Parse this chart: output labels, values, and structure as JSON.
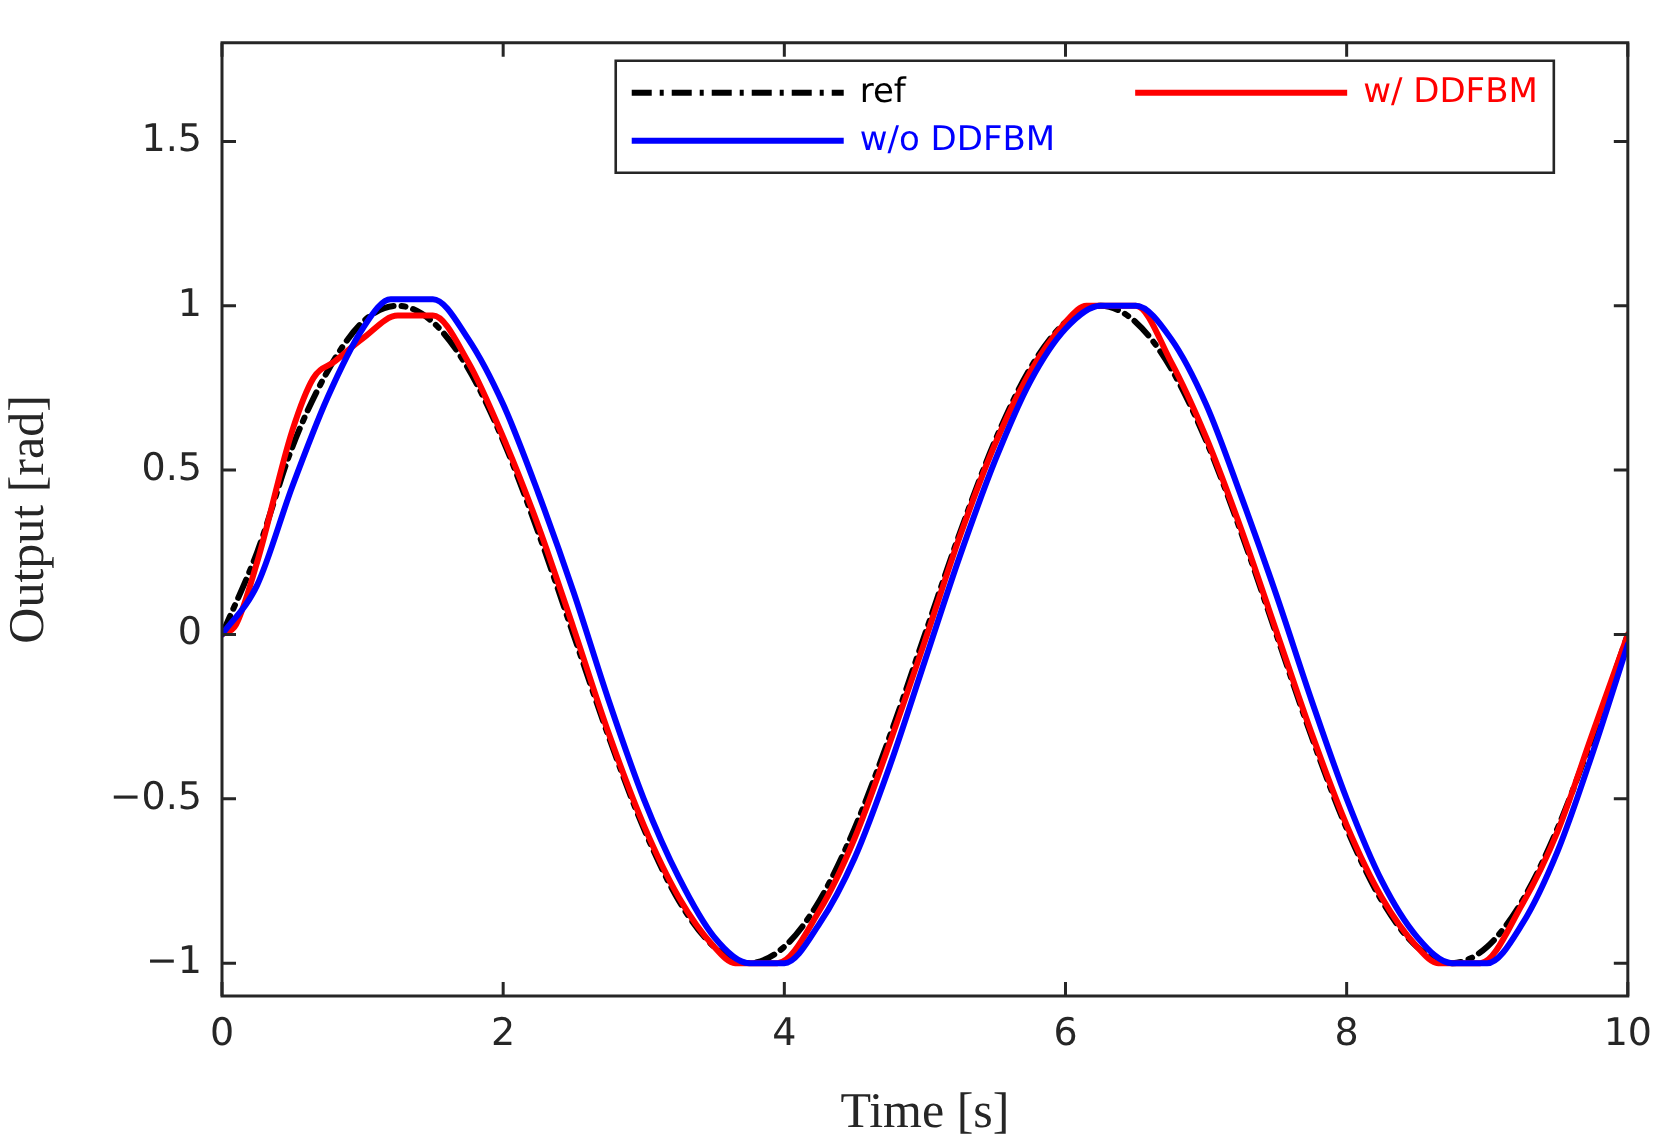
{
  "chart_data": {
    "type": "line",
    "xlabel": "Time [s]",
    "ylabel": "Output [rad]",
    "xlim": [
      0,
      10
    ],
    "xticks": [
      0,
      2,
      4,
      6,
      8,
      10
    ],
    "ylim": [
      -1.1,
      1.8
    ],
    "yticks": [
      -1,
      -0.5,
      0,
      0.5,
      1,
      1.5
    ],
    "grid": false,
    "legend": "top right",
    "marker": "none",
    "series": [
      {
        "name": "ref",
        "color": "#000000",
        "line_style": "dashed",
        "x": [
          0,
          0.25,
          0.5,
          0.75,
          1,
          1.25,
          1.5,
          1.75,
          2,
          2.25,
          2.5,
          2.75,
          3,
          3.25,
          3.5,
          3.75,
          4,
          4.25,
          4.5,
          4.75,
          5,
          5.25,
          5.5,
          5.75,
          6,
          6.25,
          6.5,
          6.75,
          7,
          7.25,
          7.5,
          7.75,
          8,
          8.25,
          8.5,
          8.75,
          9,
          9.25,
          9.5,
          9.75,
          10
        ],
        "values": [
          0,
          0.25,
          0.57,
          0.8,
          0.95,
          1,
          0.95,
          0.81,
          0.59,
          0.31,
          0,
          -0.31,
          -0.59,
          -0.81,
          -0.95,
          -1,
          -0.95,
          -0.81,
          -0.59,
          -0.31,
          0,
          0.31,
          0.59,
          0.81,
          0.95,
          1,
          0.95,
          0.81,
          0.59,
          0.31,
          0,
          -0.31,
          -0.59,
          -0.81,
          -0.95,
          -1,
          -0.95,
          -0.81,
          -0.59,
          -0.31,
          0
        ]
      },
      {
        "name": "w/ DDFBM",
        "color": "#ff0000",
        "line_style": "solid",
        "x": [
          0,
          0.1,
          0.25,
          0.5,
          0.65,
          0.8,
          1,
          1.25,
          1.5,
          1.75,
          2,
          2.25,
          2.5,
          2.75,
          3,
          3.25,
          3.5,
          3.65,
          3.95,
          4.25,
          4.5,
          4.75,
          5,
          5.25,
          5.5,
          5.75,
          6,
          6.15,
          6.5,
          6.75,
          7,
          7.25,
          7.5,
          7.75,
          8,
          8.25,
          8.5,
          8.65,
          8.95,
          9.25,
          9.5,
          9.75,
          10
        ],
        "values": [
          0,
          0.03,
          0.22,
          0.62,
          0.78,
          0.83,
          0.9,
          0.97,
          0.97,
          0.83,
          0.6,
          0.33,
          0.02,
          -0.3,
          -0.58,
          -0.8,
          -0.95,
          -1,
          -1,
          -0.84,
          -0.62,
          -0.33,
          -0.02,
          0.3,
          0.58,
          0.8,
          0.95,
          1,
          1,
          0.83,
          0.6,
          0.32,
          0.01,
          -0.3,
          -0.58,
          -0.8,
          -0.95,
          -1,
          -1,
          -0.82,
          -0.6,
          -0.3,
          0
        ]
      },
      {
        "name": "w/o DDFBM",
        "color": "#0000ff",
        "line_style": "solid",
        "x": [
          0,
          0.25,
          0.5,
          0.75,
          1,
          1.2,
          1.5,
          1.75,
          2,
          2.25,
          2.5,
          2.75,
          3,
          3.25,
          3.5,
          3.75,
          4,
          4.25,
          4.5,
          4.75,
          5,
          5.25,
          5.5,
          5.75,
          6,
          6.25,
          6.5,
          6.75,
          7,
          7.25,
          7.5,
          7.75,
          8,
          8.25,
          8.5,
          8.75,
          9,
          9.25,
          9.5,
          9.75,
          10
        ],
        "values": [
          0,
          0.15,
          0.45,
          0.72,
          0.93,
          1.02,
          1.02,
          0.9,
          0.7,
          0.43,
          0.13,
          -0.2,
          -0.5,
          -0.74,
          -0.92,
          -1,
          -1,
          -0.88,
          -0.68,
          -0.4,
          -0.08,
          0.24,
          0.53,
          0.77,
          0.93,
          1,
          1,
          0.9,
          0.7,
          0.42,
          0.12,
          -0.2,
          -0.5,
          -0.75,
          -0.92,
          -1,
          -1,
          -0.88,
          -0.66,
          -0.36,
          -0.03
        ]
      }
    ]
  }
}
